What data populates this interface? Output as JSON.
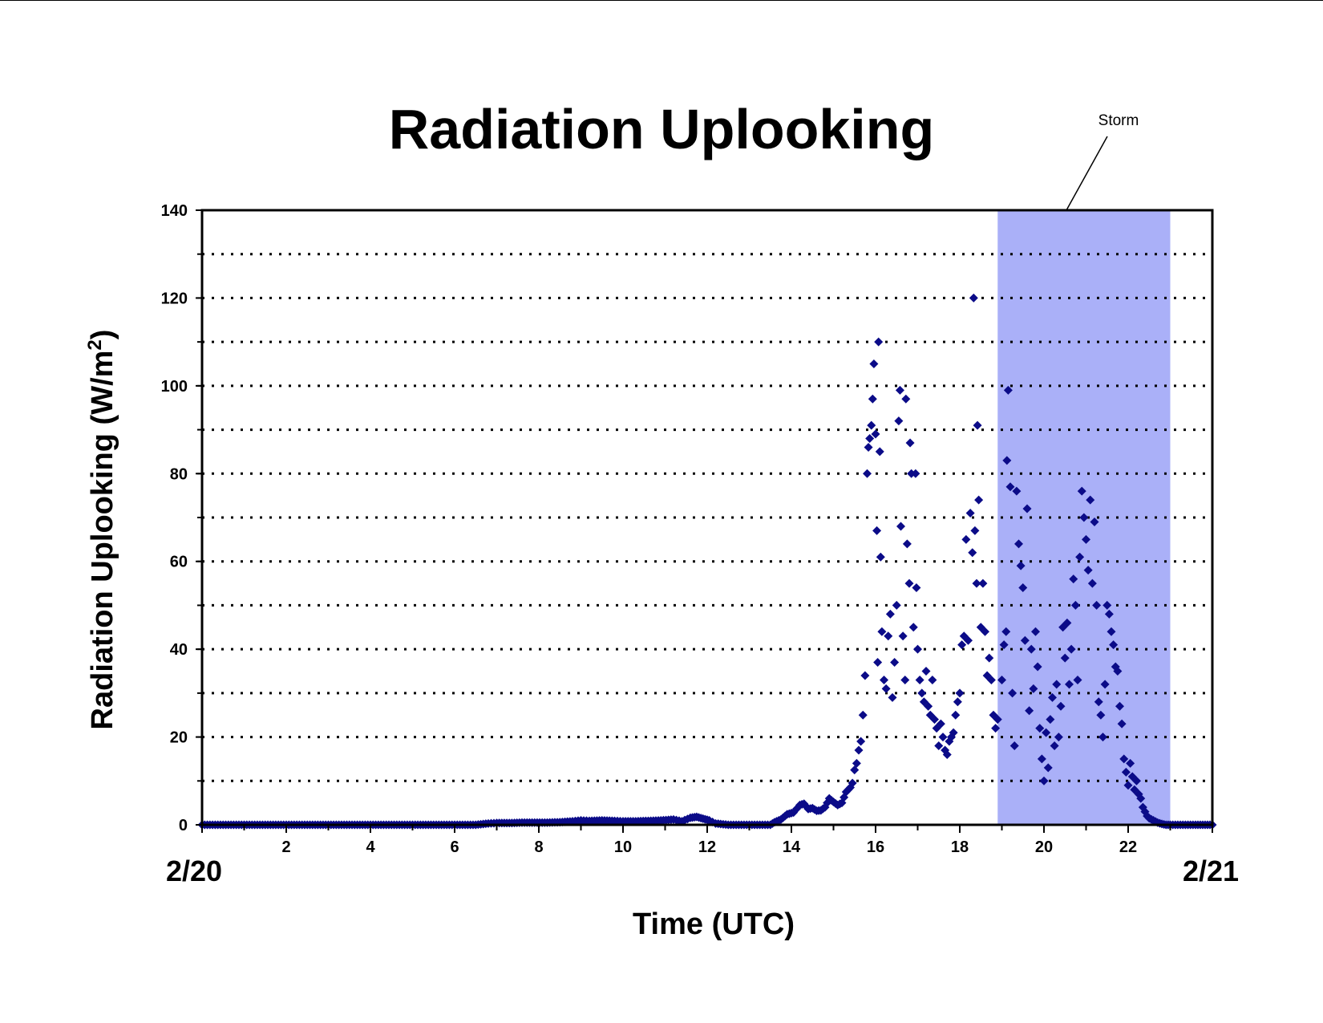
{
  "chart_data": {
    "type": "scatter",
    "title": "Radiation Uplooking",
    "xlabel": "Time (UTC)",
    "ylabel_main": "Radiation Uplooking (W/m",
    "ylabel_sup": "2",
    "ylabel_close": ")",
    "xlim": [
      0,
      24
    ],
    "ylim": [
      0,
      140
    ],
    "x_ticks": [
      {
        "value": 2,
        "label": "2"
      },
      {
        "value": 4,
        "label": "4"
      },
      {
        "value": 6,
        "label": "6"
      },
      {
        "value": 8,
        "label": "8"
      },
      {
        "value": 10,
        "label": "10"
      },
      {
        "value": 12,
        "label": "12"
      },
      {
        "value": 14,
        "label": "14"
      },
      {
        "value": 16,
        "label": "16"
      },
      {
        "value": 18,
        "label": "18"
      },
      {
        "value": 20,
        "label": "20"
      },
      {
        "value": 22,
        "label": "22"
      }
    ],
    "y_ticks": [
      {
        "value": 0,
        "label": "0"
      },
      {
        "value": 20,
        "label": "20"
      },
      {
        "value": 40,
        "label": "40"
      },
      {
        "value": 60,
        "label": "60"
      },
      {
        "value": 80,
        "label": "80"
      },
      {
        "value": 100,
        "label": "100"
      },
      {
        "value": 120,
        "label": "120"
      },
      {
        "value": 140,
        "label": "140"
      }
    ],
    "gridlines_y": [
      10,
      20,
      30,
      40,
      50,
      60,
      70,
      80,
      90,
      100,
      110,
      120,
      130
    ],
    "grid": "horizontal dotted",
    "date_labels": {
      "start": "2/20",
      "end": "2/21"
    },
    "shaded_region": {
      "x_start": 18.9,
      "x_end": 23.0,
      "label": "Storm",
      "color": "#aab0f8"
    },
    "marker_color": "#0b0b88",
    "marker": "diamond",
    "series": [
      {
        "points": [
          [
            0.0,
            0
          ],
          [
            0.5,
            0
          ],
          [
            1.0,
            0
          ],
          [
            1.5,
            0
          ],
          [
            2.0,
            0
          ],
          [
            2.5,
            0
          ],
          [
            3.0,
            0
          ],
          [
            3.5,
            0
          ],
          [
            4.0,
            0
          ],
          [
            4.5,
            0
          ],
          [
            5.0,
            0
          ],
          [
            5.5,
            0
          ],
          [
            6.0,
            0
          ],
          [
            6.5,
            0
          ],
          [
            6.8,
            0.3
          ],
          [
            7.0,
            0.4
          ],
          [
            7.3,
            0.4
          ],
          [
            7.6,
            0.5
          ],
          [
            7.9,
            0.5
          ],
          [
            8.2,
            0.5
          ],
          [
            8.5,
            0.6
          ],
          [
            8.8,
            0.8
          ],
          [
            9.0,
            1.0
          ],
          [
            9.2,
            0.9
          ],
          [
            9.5,
            1.0
          ],
          [
            9.8,
            0.9
          ],
          [
            10.0,
            0.8
          ],
          [
            10.3,
            0.8
          ],
          [
            10.6,
            0.9
          ],
          [
            10.9,
            1.0
          ],
          [
            11.2,
            1.2
          ],
          [
            11.4,
            0.8
          ],
          [
            11.6,
            1.6
          ],
          [
            11.75,
            1.8
          ],
          [
            11.9,
            1.4
          ],
          [
            12.05,
            1.0
          ],
          [
            12.2,
            0.3
          ],
          [
            12.5,
            0
          ],
          [
            13.0,
            0
          ],
          [
            13.5,
            0
          ],
          [
            13.6,
            0.6
          ],
          [
            13.75,
            1.2
          ],
          [
            13.9,
            2.4
          ],
          [
            14.05,
            2.8
          ],
          [
            14.2,
            4.5
          ],
          [
            14.3,
            4.8
          ],
          [
            14.4,
            3.6
          ],
          [
            14.5,
            3.8
          ],
          [
            14.6,
            3.2
          ],
          [
            14.7,
            3.3
          ],
          [
            14.8,
            4.0
          ],
          [
            14.9,
            6.0
          ],
          [
            15.0,
            5.2
          ],
          [
            15.1,
            4.5
          ],
          [
            15.2,
            5.0
          ],
          [
            15.3,
            7.5
          ],
          [
            15.4,
            8.5
          ],
          [
            15.45,
            9.5
          ],
          [
            15.5,
            12.5
          ],
          [
            15.55,
            14.0
          ],
          [
            15.6,
            17.0
          ],
          [
            15.65,
            19.0
          ],
          [
            15.7,
            25.0
          ],
          [
            15.75,
            34.0
          ],
          [
            15.8,
            80.0
          ],
          [
            15.83,
            86.0
          ],
          [
            15.86,
            88.0
          ],
          [
            15.9,
            91.0
          ],
          [
            15.93,
            97.0
          ],
          [
            15.96,
            105.0
          ],
          [
            16.0,
            89.0
          ],
          [
            16.03,
            67.0
          ],
          [
            16.05,
            37.0
          ],
          [
            16.07,
            110.0
          ],
          [
            16.1,
            85.0
          ],
          [
            16.12,
            61.0
          ],
          [
            16.15,
            44.0
          ],
          [
            16.2,
            33.0
          ],
          [
            16.25,
            31.0
          ],
          [
            16.3,
            43.0
          ],
          [
            16.35,
            48.0
          ],
          [
            16.4,
            29.0
          ],
          [
            16.45,
            37.0
          ],
          [
            16.5,
            50.0
          ],
          [
            16.55,
            92.0
          ],
          [
            16.58,
            99.0
          ],
          [
            16.6,
            68.0
          ],
          [
            16.65,
            43.0
          ],
          [
            16.7,
            33.0
          ],
          [
            16.72,
            97.0
          ],
          [
            16.75,
            64.0
          ],
          [
            16.8,
            55.0
          ],
          [
            16.82,
            87.0
          ],
          [
            16.85,
            80.0
          ],
          [
            16.9,
            45.0
          ],
          [
            16.95,
            80.0
          ],
          [
            16.97,
            54.0
          ],
          [
            17.0,
            40.0
          ],
          [
            17.05,
            33.0
          ],
          [
            17.1,
            30.0
          ],
          [
            17.15,
            28.0
          ],
          [
            17.2,
            35.0
          ],
          [
            17.25,
            27.0
          ],
          [
            17.3,
            25.0
          ],
          [
            17.35,
            33.0
          ],
          [
            17.4,
            24.0
          ],
          [
            17.45,
            22.0
          ],
          [
            17.5,
            18.0
          ],
          [
            17.55,
            23.0
          ],
          [
            17.6,
            20.0
          ],
          [
            17.65,
            17.0
          ],
          [
            17.7,
            16.0
          ],
          [
            17.75,
            19.0
          ],
          [
            17.8,
            20.0
          ],
          [
            17.85,
            21.0
          ],
          [
            17.9,
            25.0
          ],
          [
            17.95,
            28.0
          ],
          [
            18.0,
            30.0
          ],
          [
            18.05,
            41.0
          ],
          [
            18.1,
            43.0
          ],
          [
            18.15,
            65.0
          ],
          [
            18.2,
            42.0
          ],
          [
            18.25,
            71.0
          ],
          [
            18.3,
            62.0
          ],
          [
            18.33,
            120.0
          ],
          [
            18.36,
            67.0
          ],
          [
            18.4,
            55.0
          ],
          [
            18.42,
            91.0
          ],
          [
            18.45,
            74.0
          ],
          [
            18.5,
            45.0
          ],
          [
            18.55,
            55.0
          ],
          [
            18.6,
            44.0
          ],
          [
            18.65,
            34.0
          ],
          [
            18.7,
            38.0
          ],
          [
            18.75,
            33.0
          ],
          [
            18.8,
            25.0
          ],
          [
            18.85,
            22.0
          ],
          [
            18.9,
            24.0
          ],
          [
            19.0,
            33.0
          ],
          [
            19.05,
            41.0
          ],
          [
            19.1,
            44.0
          ],
          [
            19.12,
            83.0
          ],
          [
            19.15,
            99.0
          ],
          [
            19.2,
            77.0
          ],
          [
            19.25,
            30.0
          ],
          [
            19.3,
            18.0
          ],
          [
            19.35,
            76.0
          ],
          [
            19.4,
            64.0
          ],
          [
            19.45,
            59.0
          ],
          [
            19.5,
            54.0
          ],
          [
            19.55,
            42.0
          ],
          [
            19.6,
            72.0
          ],
          [
            19.65,
            26.0
          ],
          [
            19.7,
            40.0
          ],
          [
            19.75,
            31.0
          ],
          [
            19.8,
            44.0
          ],
          [
            19.85,
            36.0
          ],
          [
            19.9,
            22.0
          ],
          [
            19.95,
            15.0
          ],
          [
            20.0,
            10.0
          ],
          [
            20.05,
            21.0
          ],
          [
            20.1,
            13.0
          ],
          [
            20.15,
            24.0
          ],
          [
            20.2,
            29.0
          ],
          [
            20.25,
            18.0
          ],
          [
            20.3,
            32.0
          ],
          [
            20.35,
            20.0
          ],
          [
            20.4,
            27.0
          ],
          [
            20.45,
            45.0
          ],
          [
            20.5,
            38.0
          ],
          [
            20.55,
            46.0
          ],
          [
            20.6,
            32.0
          ],
          [
            20.65,
            40.0
          ],
          [
            20.7,
            56.0
          ],
          [
            20.75,
            50.0
          ],
          [
            20.8,
            33.0
          ],
          [
            20.85,
            61.0
          ],
          [
            20.9,
            76.0
          ],
          [
            20.95,
            70.0
          ],
          [
            21.0,
            65.0
          ],
          [
            21.05,
            58.0
          ],
          [
            21.1,
            74.0
          ],
          [
            21.15,
            55.0
          ],
          [
            21.2,
            69.0
          ],
          [
            21.25,
            50.0
          ],
          [
            21.3,
            28.0
          ],
          [
            21.35,
            25.0
          ],
          [
            21.4,
            20.0
          ],
          [
            21.45,
            32.0
          ],
          [
            21.5,
            50.0
          ],
          [
            21.55,
            48.0
          ],
          [
            21.6,
            44.0
          ],
          [
            21.65,
            41.0
          ],
          [
            21.7,
            36.0
          ],
          [
            21.75,
            35.0
          ],
          [
            21.8,
            27.0
          ],
          [
            21.85,
            23.0
          ],
          [
            21.9,
            15.0
          ],
          [
            21.95,
            12.0
          ],
          [
            22.0,
            9.0
          ],
          [
            22.05,
            14.0
          ],
          [
            22.1,
            11.0
          ],
          [
            22.15,
            8.0
          ],
          [
            22.2,
            10.0
          ],
          [
            22.25,
            7.0
          ],
          [
            22.3,
            6.0
          ],
          [
            22.35,
            4.0
          ],
          [
            22.4,
            3.0
          ],
          [
            22.45,
            2.0
          ],
          [
            22.5,
            1.5
          ],
          [
            22.6,
            1.0
          ],
          [
            22.7,
            0.5
          ],
          [
            22.8,
            0.2
          ],
          [
            22.9,
            0
          ],
          [
            23.0,
            0
          ],
          [
            23.3,
            0
          ],
          [
            23.6,
            0
          ],
          [
            24.0,
            0
          ]
        ]
      }
    ]
  }
}
